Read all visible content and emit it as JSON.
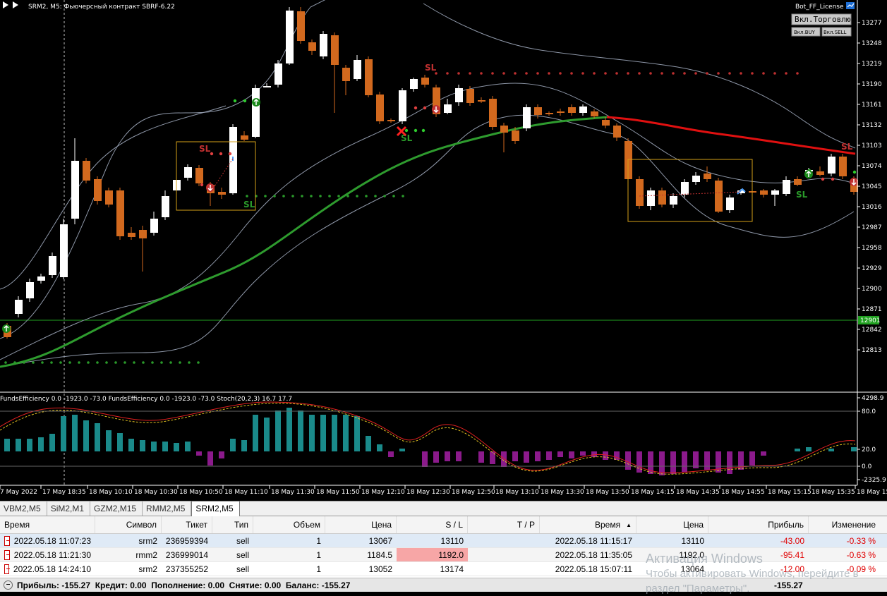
{
  "chart_header": {
    "symbol_title": "SRM2, M5:  Фьючерсный контракт SBRF-6.22",
    "bot_name": "Bot_FF_License",
    "trade_button": "Вкл.Торговлю",
    "buy_button": "Вкл.BUY",
    "sell_button": "Вкл.SELL",
    "indicator_title": "FundsEfficiency 0.0 -1923.0 -73.0 FundsEfficiency 0.0 -1923.0 -73.0 Stoch(20,2,3) 16.7 17.7"
  },
  "price_axis": [
    "13277",
    "13248",
    "13219",
    "13190",
    "13161",
    "13132",
    "13103",
    "13074",
    "13045",
    "13016",
    "12987",
    "12958",
    "12929",
    "12900",
    "12871",
    "12842",
    "12813"
  ],
  "current_level": "12901",
  "indicator_axis": [
    "4298.9",
    "80.0",
    "20.0",
    "0.0",
    "-2325.9"
  ],
  "time_axis": [
    "7 May 2022",
    "17 May 18:35",
    "18 May 10:10",
    "18 May 10:30",
    "18 May 10:50",
    "18 May 11:10",
    "18 May 11:30",
    "18 May 11:50",
    "18 May 12:10",
    "18 May 12:30",
    "18 May 12:50",
    "18 May 13:10",
    "18 May 13:30",
    "18 May 13:50",
    "18 May 14:15",
    "18 May 14:35",
    "18 May 14:55",
    "18 May 15:15",
    "18 May 15:35",
    "18 May 15:"
  ],
  "chart_labels": {
    "sl": "SL"
  },
  "tabs": [
    "VBM2,M5",
    "SiM2,M1",
    "GZM2,M15",
    "RMM2,M5",
    "SRM2,M5"
  ],
  "active_tab": "SRM2,M5",
  "table": {
    "headers": [
      "Время",
      "Символ",
      "Тикет",
      "Тип",
      "Объем",
      "Цена",
      "S / L",
      "T / P",
      "Время",
      "Цена",
      "Прибыль",
      "Изменение"
    ],
    "sort_arrow": "▲",
    "rows": [
      [
        "2022.05.18 11:07:23",
        "srm2",
        "236959394",
        "sell",
        "1",
        "13067",
        "13110",
        "",
        "2022.05.18 11:15:17",
        "13110",
        "-43.00",
        "-0.33 %"
      ],
      [
        "2022.05.18 11:21:30",
        "rmm2",
        "236999014",
        "sell",
        "1",
        "1184.5",
        "1192.0",
        "",
        "2022.05.18 11:35:05",
        "1192.0",
        "-95.41",
        "-0.63 %"
      ],
      [
        "2022.05.18 14:24:10",
        "srm2",
        "237355252",
        "sell",
        "1",
        "13052",
        "13174",
        "",
        "2022.05.18 15:07:11",
        "13064",
        "-12.00",
        "-0.09 %"
      ]
    ]
  },
  "footer": {
    "collapse_icon": "–",
    "summary": "Прибыль: -155.27  Кредит: 0.00  Пополнение: 0.00  Снятие: 0.00  Баланс: -155.27",
    "total": "-155.27"
  },
  "watermark": {
    "line1": "Активация Windows",
    "line2": "Чтобы активировать Windows, перейдите в",
    "line3": "раздел \"Параметры\"."
  },
  "colors": {
    "bull": "#ffffff",
    "bear": "#d2691e",
    "ma_green": "#2e9b2e",
    "ma_red": "#e01010",
    "bands": "#8e97a8",
    "hist_pos": "#1a8a8a",
    "hist_neg": "#8b1a8b"
  }
}
